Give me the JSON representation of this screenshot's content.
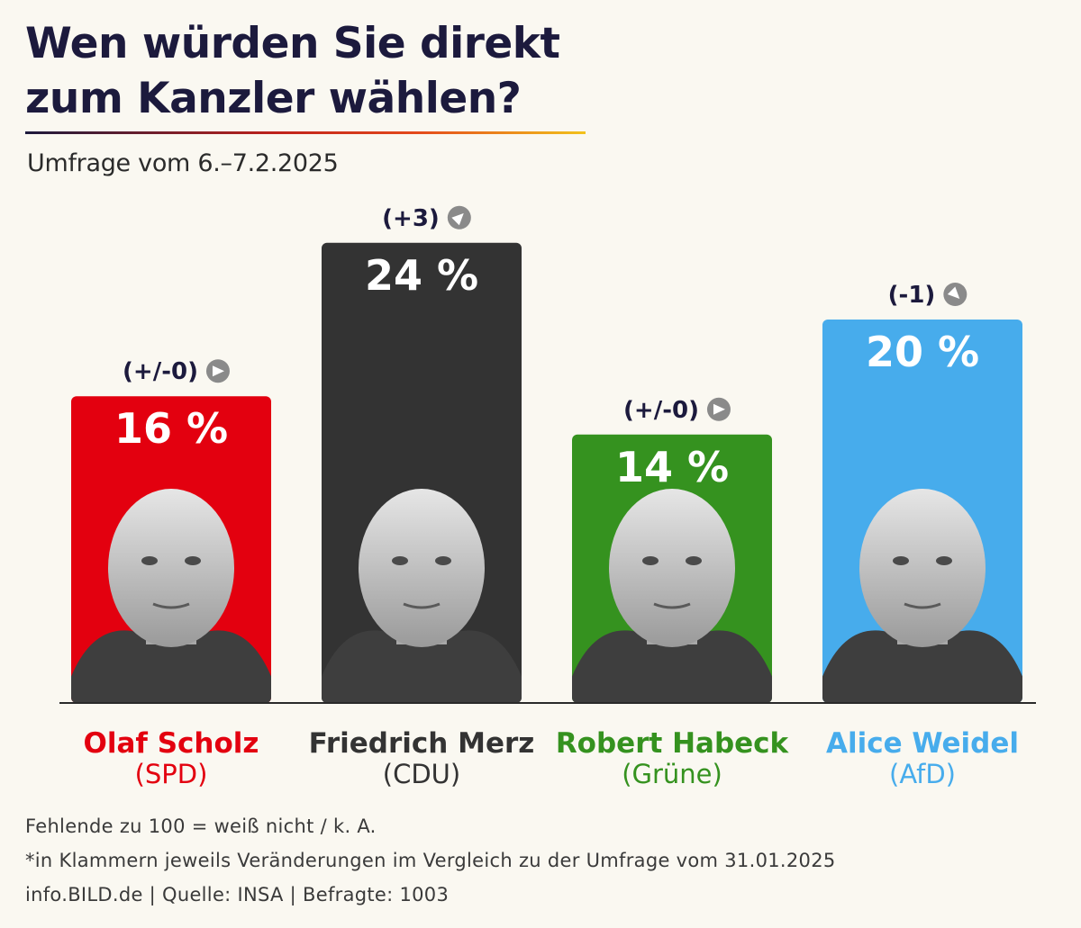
{
  "chart_data": {
    "type": "bar",
    "title": "Wen würden Sie direkt zum Kanzler wählen?",
    "title_lines": [
      "Wen würden Sie direkt",
      "zum Kanzler wählen?"
    ],
    "subtitle": "Umfrage vom 6.–7.2.2025",
    "unit": "%",
    "ylim": [
      0,
      24
    ],
    "bars": [
      {
        "candidate": "Olaf Scholz",
        "party": "(SPD)",
        "value": 16,
        "value_label": "16 %",
        "change": "(+/-0)",
        "change_direction": "flat",
        "color": "#e3000f",
        "name_color": "#e3000f",
        "portrait": "olaf-scholz-portrait"
      },
      {
        "candidate": "Friedrich Merz",
        "party": "(CDU)",
        "value": 24,
        "value_label": "24 %",
        "change": "(+3)",
        "change_direction": "up",
        "color": "#333333",
        "name_color": "#333333",
        "portrait": "friedrich-merz-portrait"
      },
      {
        "candidate": "Robert Habeck",
        "party": "(Grüne)",
        "value": 14,
        "value_label": "14 %",
        "change": "(+/-0)",
        "change_direction": "flat",
        "color": "#35921f",
        "name_color": "#35921f",
        "portrait": "robert-habeck-portrait"
      },
      {
        "candidate": "Alice Weidel",
        "party": "(AfD)",
        "value": 20,
        "value_label": "20 %",
        "change": "(-1)",
        "change_direction": "down",
        "color": "#47acec",
        "name_color": "#47acec",
        "portrait": "alice-weidel-portrait"
      }
    ]
  },
  "footnotes": [
    "Fehlende zu 100 = weiß nicht / k. A.",
    "*in Klammern jeweils Veränderungen im Vergleich zu der Umfrage vom 31.01.2025",
    "info.BILD.de | Quelle: INSA | Befragte: 1003"
  ],
  "colors": {
    "background": "#faf8f1",
    "title": "#1c1a3d",
    "change_icon": "#8a8a8a"
  }
}
